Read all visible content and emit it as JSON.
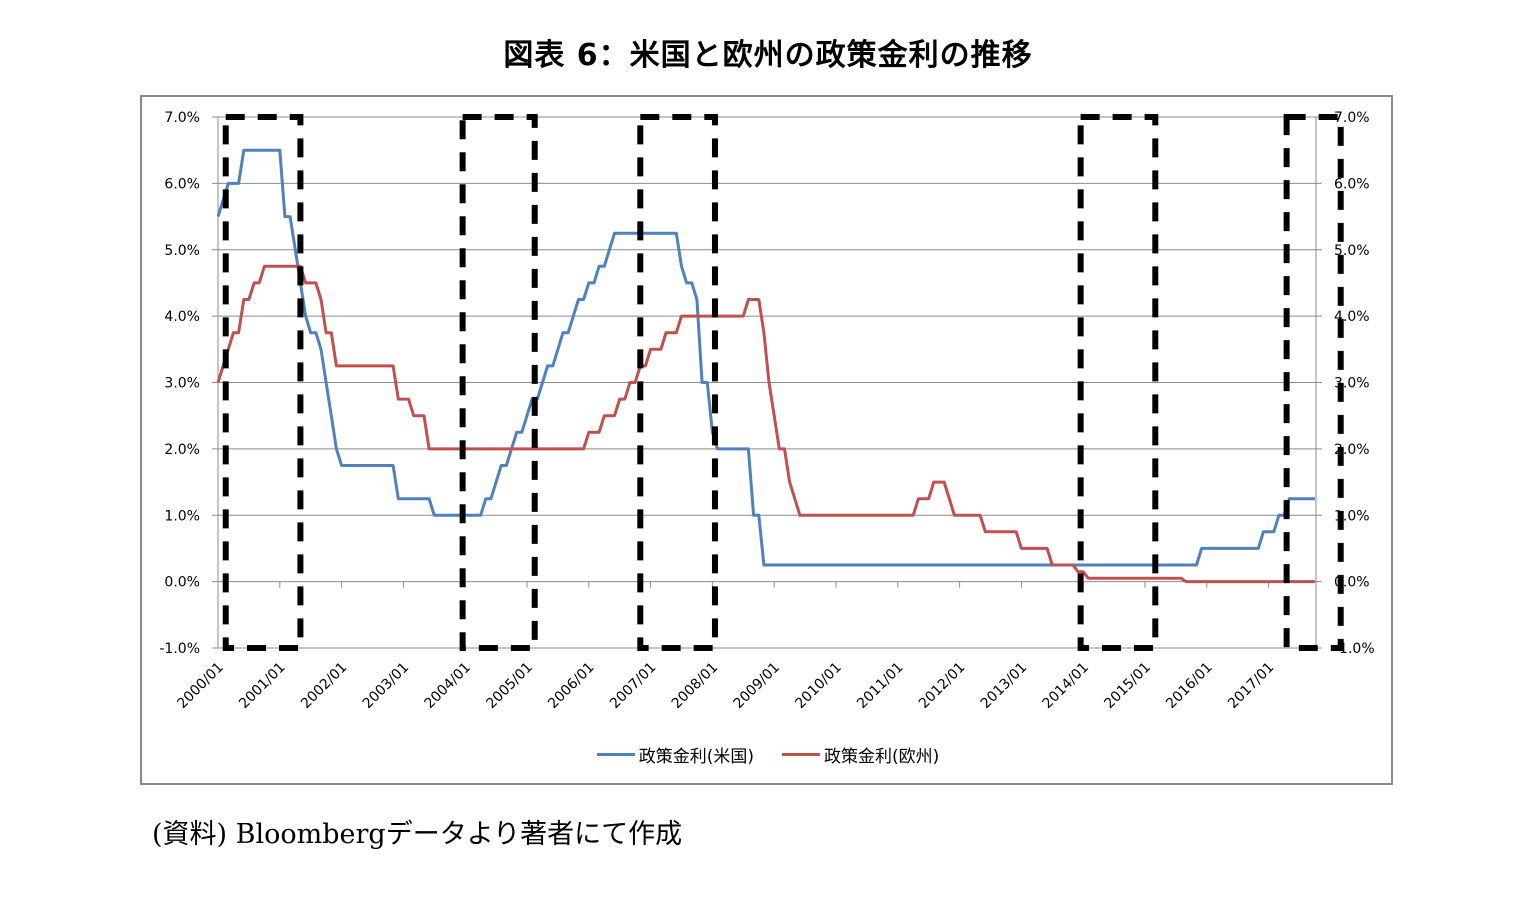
{
  "page": {
    "title": "図表 6：米国と欧州の政策金利の推移",
    "source_note": "(資料) Bloombergデータより著者にて作成"
  },
  "chart_data": {
    "type": "line",
    "title": "図表 6：米国と欧州の政策金利の推移",
    "xlabel": "",
    "ylabel": "",
    "ylim": [
      -1.0,
      7.0
    ],
    "y_ticks": [
      "7.0%",
      "6.0%",
      "5.0%",
      "4.0%",
      "3.0%",
      "2.0%",
      "1.0%",
      "0.0%",
      "-1.0%"
    ],
    "y_tick_values": [
      7,
      6,
      5,
      4,
      3,
      2,
      1,
      0,
      -1
    ],
    "secondary_y_ticks": [
      "7.0%",
      "6.0%",
      "5.0%",
      "4.0%",
      "3.0%",
      "2.0%",
      "1.0%",
      "0.0%",
      "-1.0%"
    ],
    "x_tick_labels": [
      "2000/01",
      "2001/01",
      "2002/01",
      "2003/01",
      "2004/01",
      "2005/01",
      "2006/01",
      "2007/01",
      "2008/01",
      "2009/01",
      "2010/01",
      "2011/01",
      "2012/01",
      "2013/01",
      "2014/01",
      "2015/01",
      "2016/01",
      "2017/01"
    ],
    "x_unit": "months since 2000/01",
    "x_max": 213,
    "grid": true,
    "legend_position": "bottom",
    "colors": {
      "us": "#4f81bd",
      "eu": "#c0504d",
      "highlight_box": "#000000",
      "grid": "#8c8c8c"
    },
    "series": [
      {
        "name": "政策金利(米国)",
        "color": "#4f81bd",
        "points": [
          [
            0,
            5.5
          ],
          [
            1,
            5.75
          ],
          [
            2,
            6.0
          ],
          [
            4,
            6.0
          ],
          [
            5,
            6.5
          ],
          [
            12,
            6.5
          ],
          [
            13,
            5.5
          ],
          [
            14,
            5.5
          ],
          [
            15,
            5.0
          ],
          [
            16,
            4.5
          ],
          [
            17,
            4.0
          ],
          [
            18,
            3.75
          ],
          [
            19,
            3.75
          ],
          [
            20,
            3.5
          ],
          [
            21,
            3.0
          ],
          [
            22,
            2.5
          ],
          [
            23,
            2.0
          ],
          [
            24,
            1.75
          ],
          [
            34,
            1.75
          ],
          [
            35,
            1.25
          ],
          [
            41,
            1.25
          ],
          [
            42,
            1.0
          ],
          [
            51,
            1.0
          ],
          [
            52,
            1.25
          ],
          [
            53,
            1.25
          ],
          [
            54,
            1.5
          ],
          [
            55,
            1.75
          ],
          [
            56,
            1.75
          ],
          [
            57,
            2.0
          ],
          [
            58,
            2.25
          ],
          [
            59,
            2.25
          ],
          [
            60,
            2.5
          ],
          [
            61,
            2.75
          ],
          [
            62,
            2.75
          ],
          [
            63,
            3.0
          ],
          [
            64,
            3.25
          ],
          [
            65,
            3.25
          ],
          [
            66,
            3.5
          ],
          [
            67,
            3.75
          ],
          [
            68,
            3.75
          ],
          [
            69,
            4.0
          ],
          [
            70,
            4.25
          ],
          [
            71,
            4.25
          ],
          [
            72,
            4.5
          ],
          [
            73,
            4.5
          ],
          [
            74,
            4.75
          ],
          [
            75,
            4.75
          ],
          [
            76,
            5.0
          ],
          [
            77,
            5.25
          ],
          [
            89,
            5.25
          ],
          [
            90,
            4.75
          ],
          [
            91,
            4.5
          ],
          [
            92,
            4.5
          ],
          [
            93,
            4.25
          ],
          [
            94,
            3.0
          ],
          [
            95,
            3.0
          ],
          [
            96,
            2.25
          ],
          [
            97,
            2.0
          ],
          [
            103,
            2.0
          ],
          [
            104,
            1.0
          ],
          [
            105,
            1.0
          ],
          [
            106,
            0.25
          ],
          [
            190,
            0.25
          ],
          [
            191,
            0.5
          ],
          [
            202,
            0.5
          ],
          [
            203,
            0.75
          ],
          [
            205,
            0.75
          ],
          [
            206,
            1.0
          ],
          [
            207,
            1.0
          ],
          [
            208,
            1.25
          ],
          [
            213,
            1.25
          ]
        ]
      },
      {
        "name": "政策金利(欧州)",
        "color": "#c0504d",
        "points": [
          [
            0,
            3.0
          ],
          [
            2,
            3.5
          ],
          [
            3,
            3.75
          ],
          [
            4,
            3.75
          ],
          [
            5,
            4.25
          ],
          [
            6,
            4.25
          ],
          [
            7,
            4.5
          ],
          [
            8,
            4.5
          ],
          [
            9,
            4.75
          ],
          [
            16,
            4.75
          ],
          [
            17,
            4.5
          ],
          [
            19,
            4.5
          ],
          [
            20,
            4.25
          ],
          [
            21,
            3.75
          ],
          [
            22,
            3.75
          ],
          [
            23,
            3.25
          ],
          [
            34,
            3.25
          ],
          [
            35,
            2.75
          ],
          [
            37,
            2.75
          ],
          [
            38,
            2.5
          ],
          [
            40,
            2.5
          ],
          [
            41,
            2.0
          ],
          [
            71,
            2.0
          ],
          [
            72,
            2.25
          ],
          [
            74,
            2.25
          ],
          [
            75,
            2.5
          ],
          [
            77,
            2.5
          ],
          [
            78,
            2.75
          ],
          [
            79,
            2.75
          ],
          [
            80,
            3.0
          ],
          [
            81,
            3.0
          ],
          [
            82,
            3.25
          ],
          [
            83,
            3.25
          ],
          [
            84,
            3.5
          ],
          [
            86,
            3.5
          ],
          [
            87,
            3.75
          ],
          [
            89,
            3.75
          ],
          [
            90,
            4.0
          ],
          [
            102,
            4.0
          ],
          [
            103,
            4.25
          ],
          [
            105,
            4.25
          ],
          [
            106,
            3.75
          ],
          [
            107,
            3.0
          ],
          [
            108,
            2.5
          ],
          [
            109,
            2.0
          ],
          [
            110,
            2.0
          ],
          [
            111,
            1.5
          ],
          [
            112,
            1.25
          ],
          [
            113,
            1.0
          ],
          [
            135,
            1.0
          ],
          [
            136,
            1.25
          ],
          [
            138,
            1.25
          ],
          [
            139,
            1.5
          ],
          [
            141,
            1.5
          ],
          [
            142,
            1.25
          ],
          [
            143,
            1.0
          ],
          [
            148,
            1.0
          ],
          [
            149,
            0.75
          ],
          [
            155,
            0.75
          ],
          [
            156,
            0.5
          ],
          [
            161,
            0.5
          ],
          [
            162,
            0.25
          ],
          [
            166,
            0.25
          ],
          [
            167,
            0.15
          ],
          [
            168,
            0.15
          ],
          [
            169,
            0.05
          ],
          [
            187,
            0.05
          ],
          [
            188,
            0.0
          ],
          [
            213,
            0.0
          ]
        ]
      }
    ],
    "highlight_boxes": [
      {
        "x_start": 1.5,
        "x_end": 16.0
      },
      {
        "x_start": 47.5,
        "x_end": 61.5
      },
      {
        "x_start": 82.0,
        "x_end": 96.5
      },
      {
        "x_start": 167.5,
        "x_end": 182.0
      },
      {
        "x_start": 207.5,
        "x_end": 218.0
      }
    ],
    "legend": [
      {
        "label": "政策金利(米国)",
        "color": "#4f81bd"
      },
      {
        "label": "政策金利(欧州)",
        "color": "#c0504d"
      }
    ]
  }
}
